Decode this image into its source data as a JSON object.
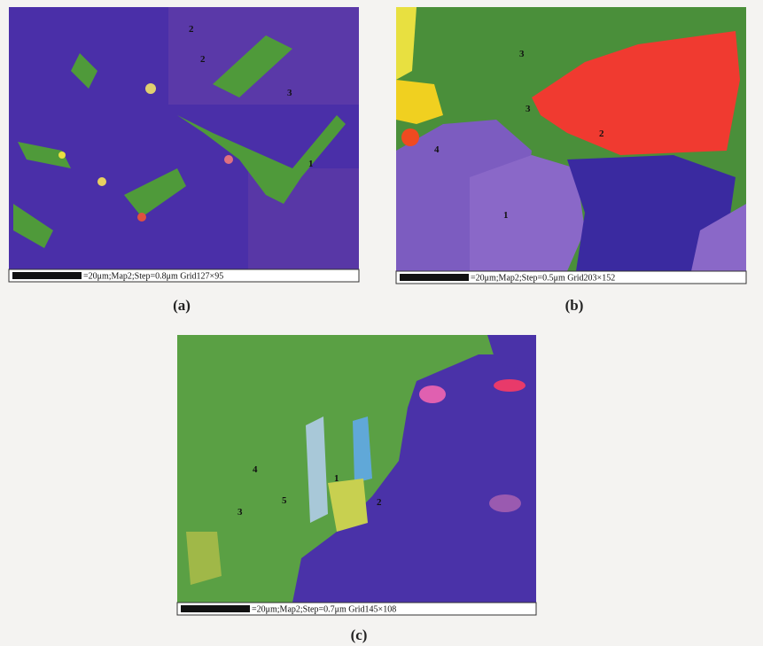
{
  "panels": [
    {
      "caption": "(a)",
      "scale_text": "=20μm;Map2;Step=0.8μm Grid127×95",
      "labels": [
        "2",
        "2",
        "3",
        "1"
      ]
    },
    {
      "caption": "(b)",
      "scale_text": "=20μm;Map2;Step=0.5μm Grid203×152",
      "labels": [
        "3",
        "3",
        "2",
        "4",
        "1"
      ]
    },
    {
      "caption": "(c)",
      "scale_text": "=20μm;Map2;Step=0.7μm Grid145×108",
      "labels": [
        "4",
        "5",
        "3",
        "1",
        "2"
      ]
    }
  ]
}
